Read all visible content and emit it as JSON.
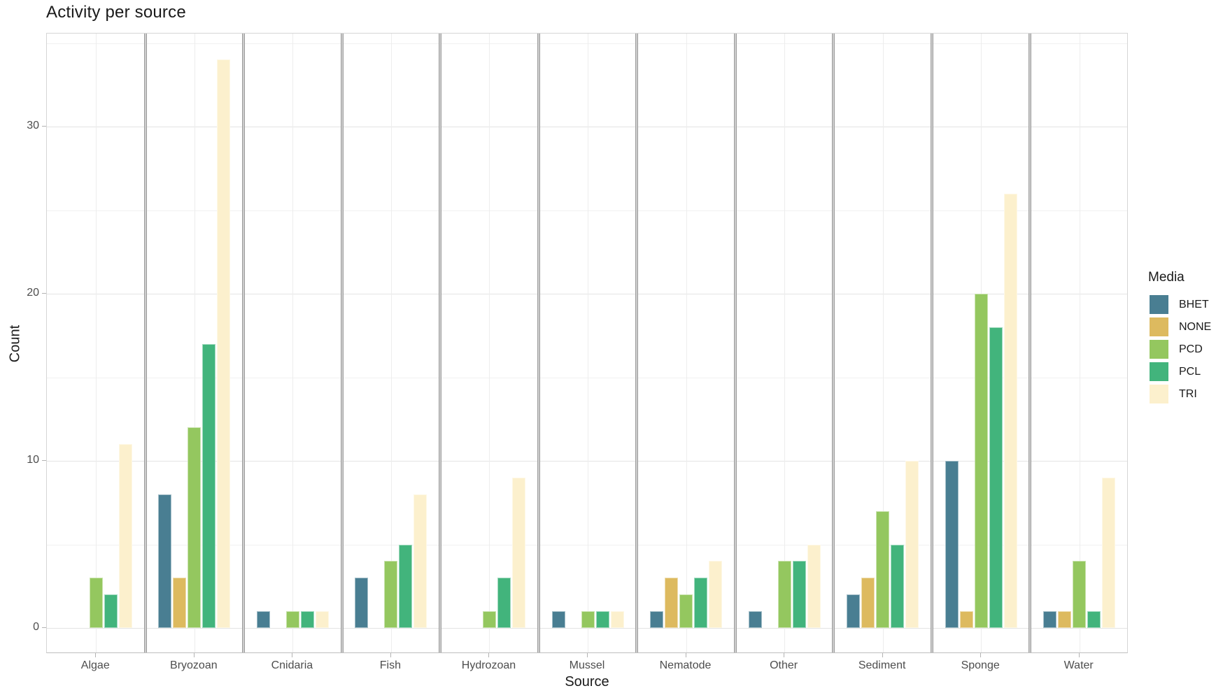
{
  "title": "Activity per source",
  "chart_data": {
    "type": "bar",
    "title": "Activity per source",
    "xlabel": "Source",
    "ylabel": "Count",
    "categories": [
      "Algae",
      "Bryozoan",
      "Cnidaria",
      "Fish",
      "Hydrozoan",
      "Mussel",
      "Nematode",
      "Other",
      "Sediment",
      "Sponge",
      "Water"
    ],
    "series": [
      {
        "name": "BHET",
        "color": "#497e92",
        "values": [
          0,
          8,
          1,
          3,
          0,
          1,
          1,
          1,
          2,
          10,
          1
        ]
      },
      {
        "name": "NONE",
        "color": "#ddba5f",
        "values": [
          0,
          3,
          0,
          0,
          0,
          0,
          3,
          0,
          3,
          1,
          1
        ]
      },
      {
        "name": "PCD",
        "color": "#94c75f",
        "values": [
          3,
          12,
          1,
          4,
          1,
          1,
          2,
          4,
          7,
          20,
          4
        ]
      },
      {
        "name": "PCL",
        "color": "#42b47c",
        "values": [
          2,
          17,
          1,
          5,
          3,
          1,
          3,
          4,
          5,
          18,
          1
        ]
      },
      {
        "name": "TRI",
        "color": "#fcf0cd",
        "values": [
          11,
          34,
          1,
          8,
          9,
          1,
          4,
          5,
          10,
          26,
          9
        ]
      }
    ],
    "legend": {
      "title": "Media",
      "position": "right"
    },
    "y_ticks": [
      0,
      10,
      20,
      30
    ],
    "y_minor_ticks": [
      5,
      15,
      25,
      35
    ],
    "ylim": [
      0,
      35.5
    ],
    "grid": true,
    "facet_dividers": true
  }
}
